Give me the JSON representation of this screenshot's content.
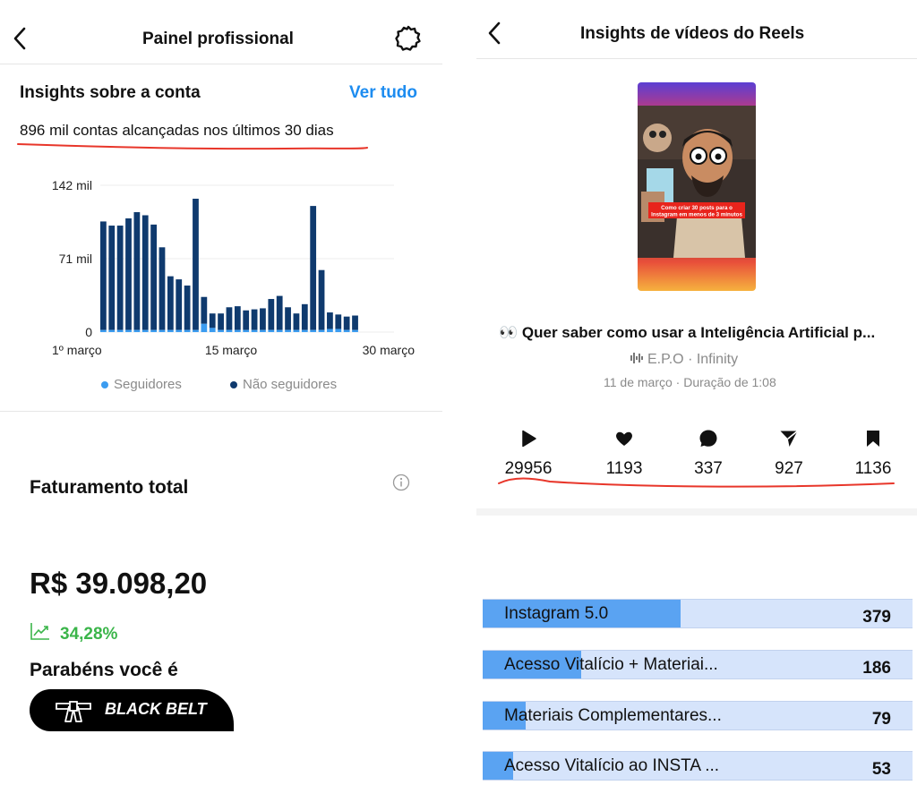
{
  "left": {
    "header": {
      "title": "Painel profissional",
      "back_icon": "chevron-left-icon",
      "settings_icon": "gear-icon"
    },
    "insights": {
      "title": "Insights sobre a conta",
      "see_all": "Ver tudo",
      "reach_text": "896 mil contas alcançadas nos últimos 30 dias"
    },
    "legend": {
      "followers": "Seguidores",
      "non_followers": "Não seguidores"
    },
    "revenue": {
      "title": "Faturamento total",
      "info_icon": "info-icon",
      "value": "R$ 39.098,20",
      "growth_icon": "trending-up-icon",
      "growth": "34,28%",
      "congrats": "Parabéns você é",
      "badge": "BLACK BELT",
      "badge_icon": "karate-belt-icon"
    }
  },
  "chart_data": {
    "type": "bar",
    "stacked": true,
    "x_tick_labels": [
      "1º março",
      "15 março",
      "30 março"
    ],
    "y_tick_labels": [
      "142 mil",
      "71 mil",
      "0"
    ],
    "ylim": [
      0,
      142
    ],
    "colors": {
      "followers": "#3b9cf0",
      "non_followers": "#0f3a6e",
      "grid": "#ececec"
    },
    "legend_position": "bottom",
    "series": [
      {
        "name": "Seguidores",
        "values": [
          2,
          2,
          2,
          2,
          2,
          2,
          2,
          2,
          2,
          2,
          2,
          2,
          8,
          4,
          2,
          2,
          2,
          2,
          2,
          2,
          2,
          2,
          2,
          2,
          2,
          2,
          2,
          3,
          3,
          2,
          2,
          2,
          2,
          2,
          2
        ]
      },
      {
        "name": "Não seguidores",
        "values": [
          105,
          101,
          101,
          108,
          114,
          111,
          102,
          80,
          52,
          49,
          43,
          127,
          26,
          14,
          16,
          22,
          23,
          19,
          20,
          21,
          30,
          33,
          22,
          16,
          25,
          120,
          58,
          16,
          14,
          13,
          14,
          0,
          0,
          0,
          0
        ]
      }
    ]
  },
  "right": {
    "header": {
      "title": "Insights de vídeos do Reels",
      "back_icon": "chevron-left-icon"
    },
    "video": {
      "thumbnail_icon": "reel-thumbnail-image",
      "caption_emoji": "👀",
      "title": "Quer saber como usar a Inteligência Artificial p...",
      "audio_icon": "audio-waveform-icon",
      "audio": "E.P.O · Infinity",
      "meta": "11 de março · Duração de 1:08",
      "thumb_caption": "Como criar 30 posts para o Instagram em menos de 3 minutos"
    },
    "stats": [
      {
        "icon": "play-icon",
        "value": "29956"
      },
      {
        "icon": "heart-icon",
        "value": "1193"
      },
      {
        "icon": "comment-icon",
        "value": "337"
      },
      {
        "icon": "send-icon",
        "value": "927"
      },
      {
        "icon": "bookmark-icon",
        "value": "1136"
      }
    ],
    "products": [
      {
        "label": "Instagram 5.0",
        "count": "379",
        "share": 0.46
      },
      {
        "label": "Acesso Vitalício + Materiai...",
        "count": "186",
        "share": 0.23
      },
      {
        "label": "Materiais Complementares...",
        "count": "79",
        "share": 0.1
      },
      {
        "label": "Acesso Vitalício ao INSTA ...",
        "count": "53",
        "share": 0.07
      }
    ],
    "accent": "#e8362a"
  }
}
